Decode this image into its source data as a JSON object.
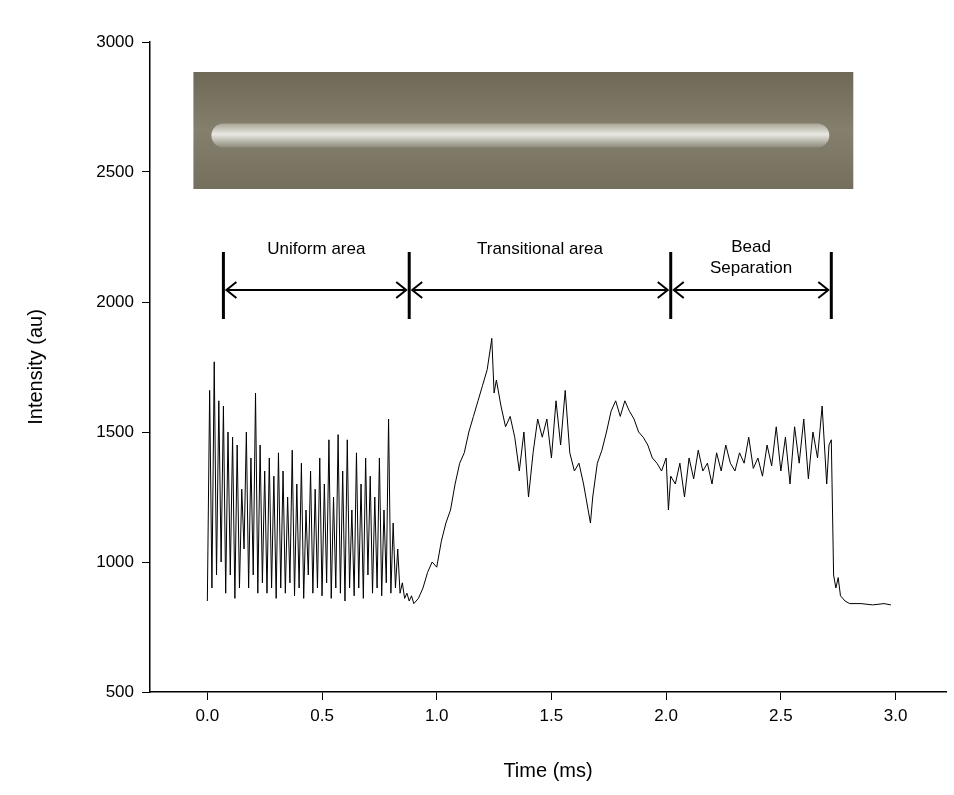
{
  "chart_data": {
    "type": "line",
    "x_label": "Time (ms)",
    "y_label": "Intensity (au)",
    "xlim": [
      -0.25,
      3.22
    ],
    "xticks": [
      {
        "value": 0,
        "label": "0.0"
      },
      {
        "value": 0.5,
        "label": "0.5"
      },
      {
        "value": 1,
        "label": "1.0"
      },
      {
        "value": 1.5,
        "label": "1.5"
      },
      {
        "value": 2,
        "label": "2.0"
      },
      {
        "value": 2.5,
        "label": "2.5"
      },
      {
        "value": 3,
        "label": "3.0"
      }
    ],
    "ylim": [
      500,
      3000
    ],
    "yticks": [
      500,
      1000,
      1500,
      2000,
      2500,
      3000
    ],
    "grid": false,
    "color": "#000000",
    "x": [
      0.0,
      0.01,
      0.02,
      0.03,
      0.04,
      0.05,
      0.06,
      0.07,
      0.08,
      0.09,
      0.1,
      0.11,
      0.12,
      0.13,
      0.14,
      0.15,
      0.16,
      0.17,
      0.18,
      0.19,
      0.2,
      0.21,
      0.22,
      0.23,
      0.24,
      0.25,
      0.26,
      0.27,
      0.28,
      0.29,
      0.3,
      0.31,
      0.32,
      0.33,
      0.34,
      0.35,
      0.36,
      0.37,
      0.38,
      0.39,
      0.4,
      0.41,
      0.42,
      0.43,
      0.44,
      0.45,
      0.46,
      0.47,
      0.48,
      0.49,
      0.5,
      0.51,
      0.52,
      0.53,
      0.54,
      0.55,
      0.56,
      0.57,
      0.58,
      0.59,
      0.6,
      0.61,
      0.62,
      0.63,
      0.64,
      0.65,
      0.66,
      0.67,
      0.68,
      0.69,
      0.7,
      0.71,
      0.72,
      0.73,
      0.74,
      0.75,
      0.76,
      0.77,
      0.78,
      0.79,
      0.8,
      0.81,
      0.82,
      0.83,
      0.84,
      0.85,
      0.86,
      0.87,
      0.88,
      0.89,
      0.9,
      0.92,
      0.94,
      0.96,
      0.98,
      1.0,
      1.02,
      1.04,
      1.06,
      1.08,
      1.1,
      1.12,
      1.14,
      1.16,
      1.18,
      1.2,
      1.22,
      1.24,
      1.25,
      1.26,
      1.28,
      1.3,
      1.32,
      1.34,
      1.36,
      1.38,
      1.4,
      1.42,
      1.44,
      1.46,
      1.48,
      1.5,
      1.52,
      1.54,
      1.56,
      1.58,
      1.6,
      1.62,
      1.64,
      1.66,
      1.67,
      1.68,
      1.7,
      1.72,
      1.74,
      1.76,
      1.78,
      1.8,
      1.82,
      1.84,
      1.86,
      1.88,
      1.9,
      1.92,
      1.94,
      1.96,
      1.98,
      2.0,
      2.01,
      2.02,
      2.04,
      2.06,
      2.08,
      2.1,
      2.12,
      2.14,
      2.16,
      2.18,
      2.2,
      2.22,
      2.24,
      2.26,
      2.28,
      2.3,
      2.32,
      2.34,
      2.36,
      2.38,
      2.4,
      2.42,
      2.44,
      2.46,
      2.48,
      2.5,
      2.52,
      2.54,
      2.56,
      2.58,
      2.6,
      2.62,
      2.64,
      2.66,
      2.68,
      2.7,
      2.71,
      2.72,
      2.73,
      2.74,
      2.75,
      2.76,
      2.78,
      2.8,
      2.85,
      2.9,
      2.95,
      2.98
    ],
    "values": [
      850,
      1660,
      900,
      1770,
      950,
      1620,
      1000,
      1600,
      880,
      1500,
      950,
      1480,
      860,
      1450,
      900,
      1280,
      1050,
      1500,
      900,
      1400,
      950,
      1650,
      880,
      1450,
      920,
      1350,
      880,
      1400,
      900,
      1330,
      860,
      1420,
      900,
      1350,
      880,
      1250,
      920,
      1430,
      870,
      1300,
      900,
      1380,
      860,
      1200,
      950,
      1350,
      880,
      1280,
      900,
      1400,
      870,
      1300,
      920,
      1470,
      860,
      1250,
      900,
      1490,
      880,
      1350,
      850,
      1470,
      900,
      1200,
      870,
      1420,
      900,
      1300,
      860,
      1400,
      950,
      1330,
      880,
      1250,
      900,
      1400,
      870,
      1200,
      920,
      1550,
      880,
      1150,
      900,
      1050,
      880,
      920,
      860,
      880,
      850,
      870,
      840,
      860,
      900,
      960,
      1000,
      980,
      1080,
      1150,
      1200,
      1300,
      1380,
      1420,
      1500,
      1560,
      1620,
      1680,
      1740,
      1860,
      1650,
      1700,
      1600,
      1520,
      1560,
      1480,
      1350,
      1500,
      1250,
      1420,
      1550,
      1480,
      1550,
      1400,
      1620,
      1450,
      1660,
      1420,
      1350,
      1380,
      1300,
      1200,
      1150,
      1250,
      1380,
      1430,
      1500,
      1580,
      1620,
      1560,
      1620,
      1580,
      1550,
      1500,
      1480,
      1450,
      1400,
      1380,
      1350,
      1400,
      1200,
      1330,
      1300,
      1380,
      1250,
      1400,
      1320,
      1430,
      1350,
      1380,
      1300,
      1420,
      1350,
      1450,
      1380,
      1350,
      1420,
      1380,
      1480,
      1360,
      1400,
      1330,
      1450,
      1370,
      1520,
      1350,
      1480,
      1300,
      1520,
      1380,
      1550,
      1320,
      1500,
      1400,
      1600,
      1300,
      1450,
      1470,
      950,
      900,
      940,
      870,
      850,
      840,
      840,
      835,
      840,
      835
    ],
    "regions": [
      {
        "label": "Uniform area",
        "x": [
          0.07,
          0.88
        ]
      },
      {
        "label": "Transitional area",
        "x": [
          0.88,
          2.02
        ]
      },
      {
        "label": "Bead Separation",
        "x": [
          2.02,
          2.72
        ]
      }
    ]
  }
}
